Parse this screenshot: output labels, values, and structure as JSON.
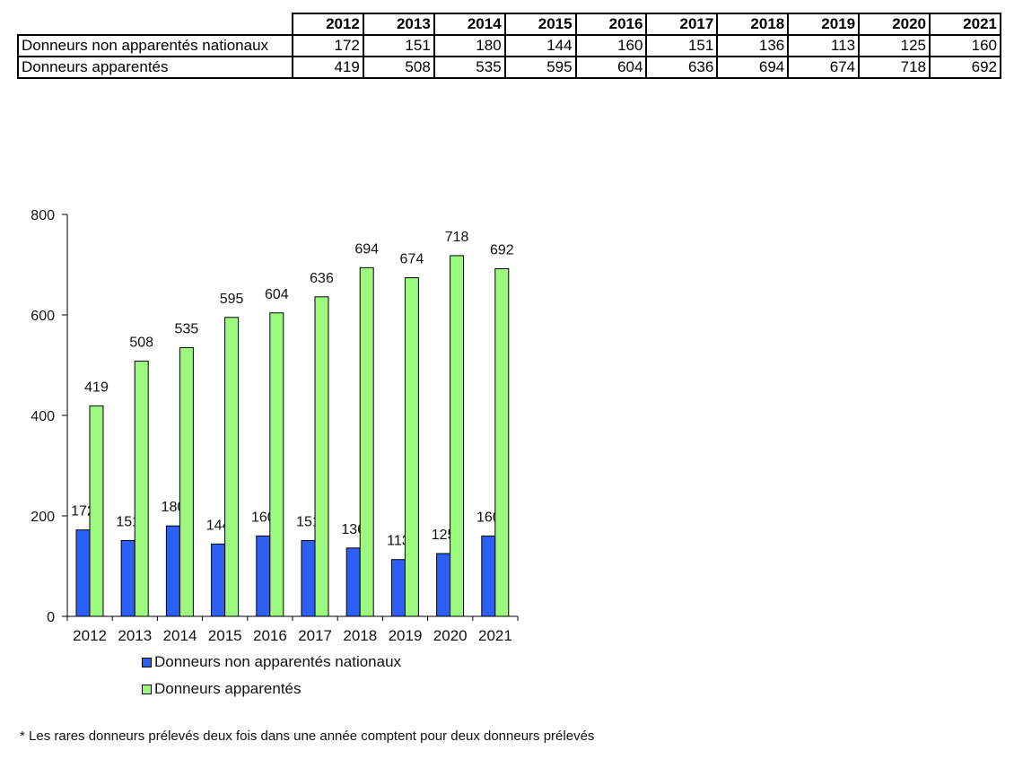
{
  "chart_data": {
    "type": "bar",
    "categories": [
      "2012",
      "2013",
      "2014",
      "2015",
      "2016",
      "2017",
      "2018",
      "2019",
      "2020",
      "2021"
    ],
    "series": [
      {
        "name": "Donneurs non apparentés nationaux",
        "values": [
          172,
          151,
          180,
          144,
          160,
          151,
          136,
          113,
          125,
          160
        ],
        "color": "#2e5ff5"
      },
      {
        "name": "Donneurs apparentés",
        "values": [
          419,
          508,
          535,
          595,
          604,
          636,
          694,
          674,
          718,
          692
        ],
        "color": "#9cf87f"
      }
    ],
    "ylim": [
      0,
      800
    ],
    "yticks": [
      0,
      200,
      400,
      600,
      800
    ],
    "yticklabels": [
      "0",
      "200",
      "400",
      "600",
      "800"
    ],
    "grid": false,
    "data_labels": true,
    "legend": "bottom",
    "title": "",
    "xlabel": "",
    "ylabel": ""
  },
  "footnote": "* Les rares donneurs prélevés deux fois dans une année comptent pour deux donneurs prélevés"
}
